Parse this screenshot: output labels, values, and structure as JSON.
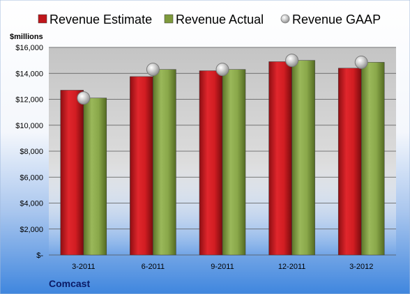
{
  "chart_data": {
    "type": "bar",
    "unit_label": "$millions",
    "company": "Comcast",
    "categories": [
      "3-2011",
      "6-2011",
      "9-2011",
      "12-2011",
      "3-2012"
    ],
    "series": [
      {
        "name": "Revenue Estimate",
        "kind": "bar",
        "color": "#c0161b",
        "values": [
          12700,
          13750,
          14200,
          14900,
          14400
        ]
      },
      {
        "name": "Revenue Actual",
        "kind": "bar",
        "color": "#7e9a3c",
        "values": [
          12100,
          14300,
          14300,
          15000,
          14850
        ]
      },
      {
        "name": "Revenue GAAP",
        "kind": "point",
        "color": "#a6a6a6",
        "values": [
          12100,
          14300,
          14300,
          15000,
          14850
        ]
      }
    ],
    "ylim": [
      0,
      16000
    ],
    "y_ticks": [
      0,
      2000,
      4000,
      6000,
      8000,
      10000,
      12000,
      14000,
      16000
    ],
    "y_tick_labels": [
      "$-",
      "$2,000",
      "$4,000",
      "$6,000",
      "$8,000",
      "$10,000",
      "$12,000",
      "$14,000",
      "$16,000"
    ],
    "grid": true,
    "legend_position": "top"
  }
}
